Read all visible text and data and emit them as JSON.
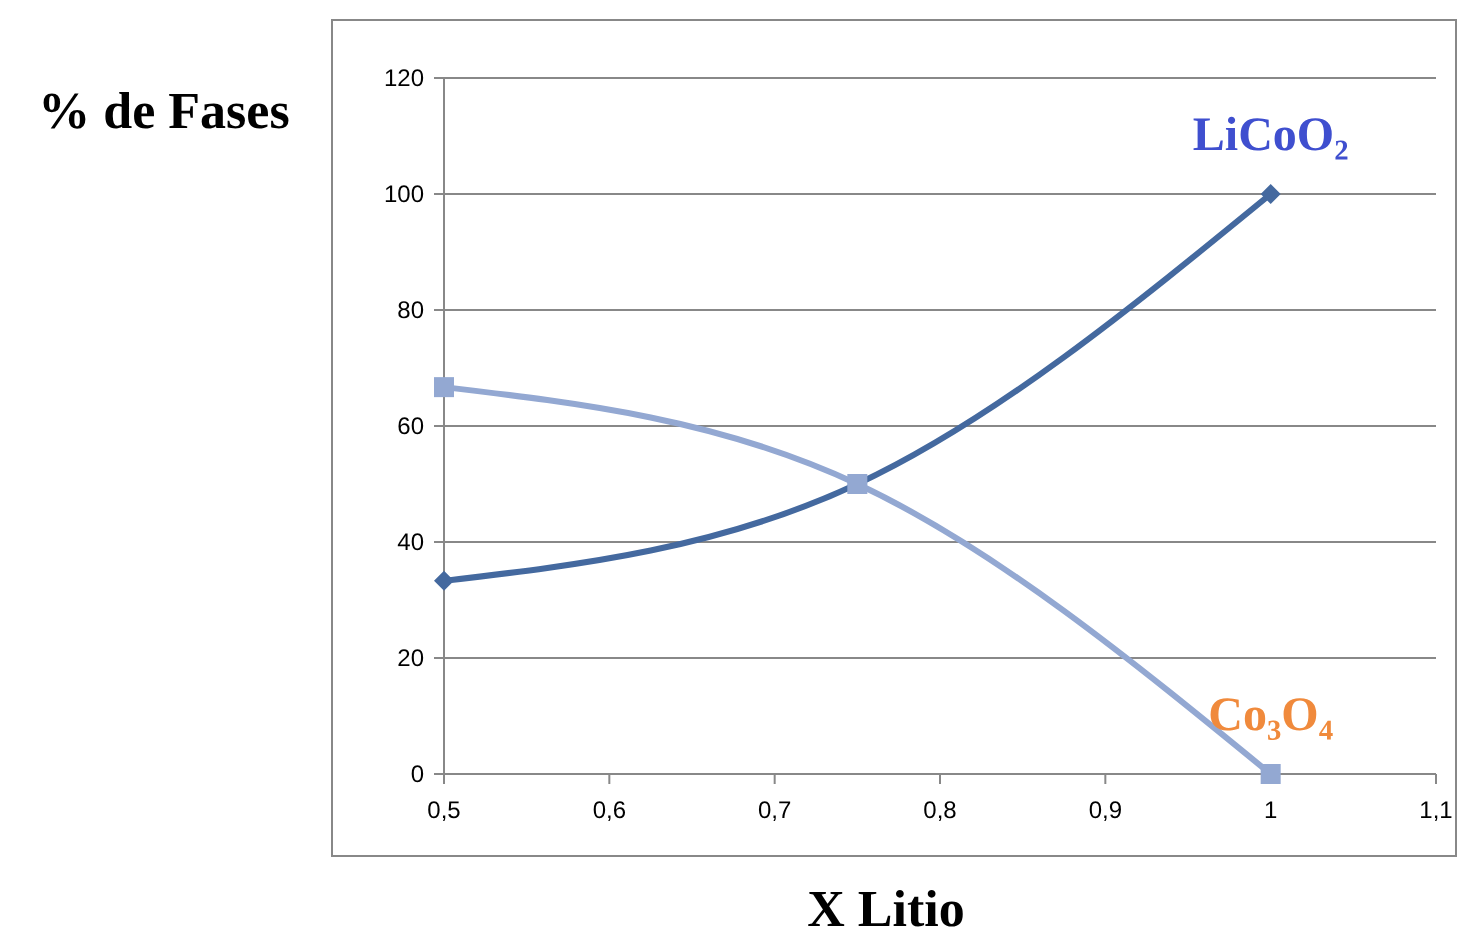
{
  "chart_data": {
    "type": "line",
    "xlabel": "X Litio",
    "ylabel": "% de Fases",
    "xlim": [
      0.5,
      1.1
    ],
    "xticks": [
      {
        "value": 0.5,
        "label": "0,5"
      },
      {
        "value": 0.6,
        "label": "0,6"
      },
      {
        "value": 0.7,
        "label": "0,7"
      },
      {
        "value": 0.8,
        "label": "0,8"
      },
      {
        "value": 0.9,
        "label": "0,9"
      },
      {
        "value": 1,
        "label": "1"
      },
      {
        "value": 1.1,
        "label": "1,1"
      }
    ],
    "ylim": [
      0,
      120
    ],
    "yticks": [
      0,
      20,
      40,
      60,
      80,
      100,
      120
    ],
    "grid": "y",
    "x": [
      0.5,
      0.75,
      1
    ],
    "series": [
      {
        "name": "LiCoO₂",
        "color": "#44699f",
        "marker": "diamond",
        "values": [
          33.3,
          50,
          100
        ]
      },
      {
        "name": "Co₃O₄",
        "color": "#93a8d2",
        "marker": "square",
        "values": [
          66.7,
          50,
          0
        ]
      }
    ]
  }
}
